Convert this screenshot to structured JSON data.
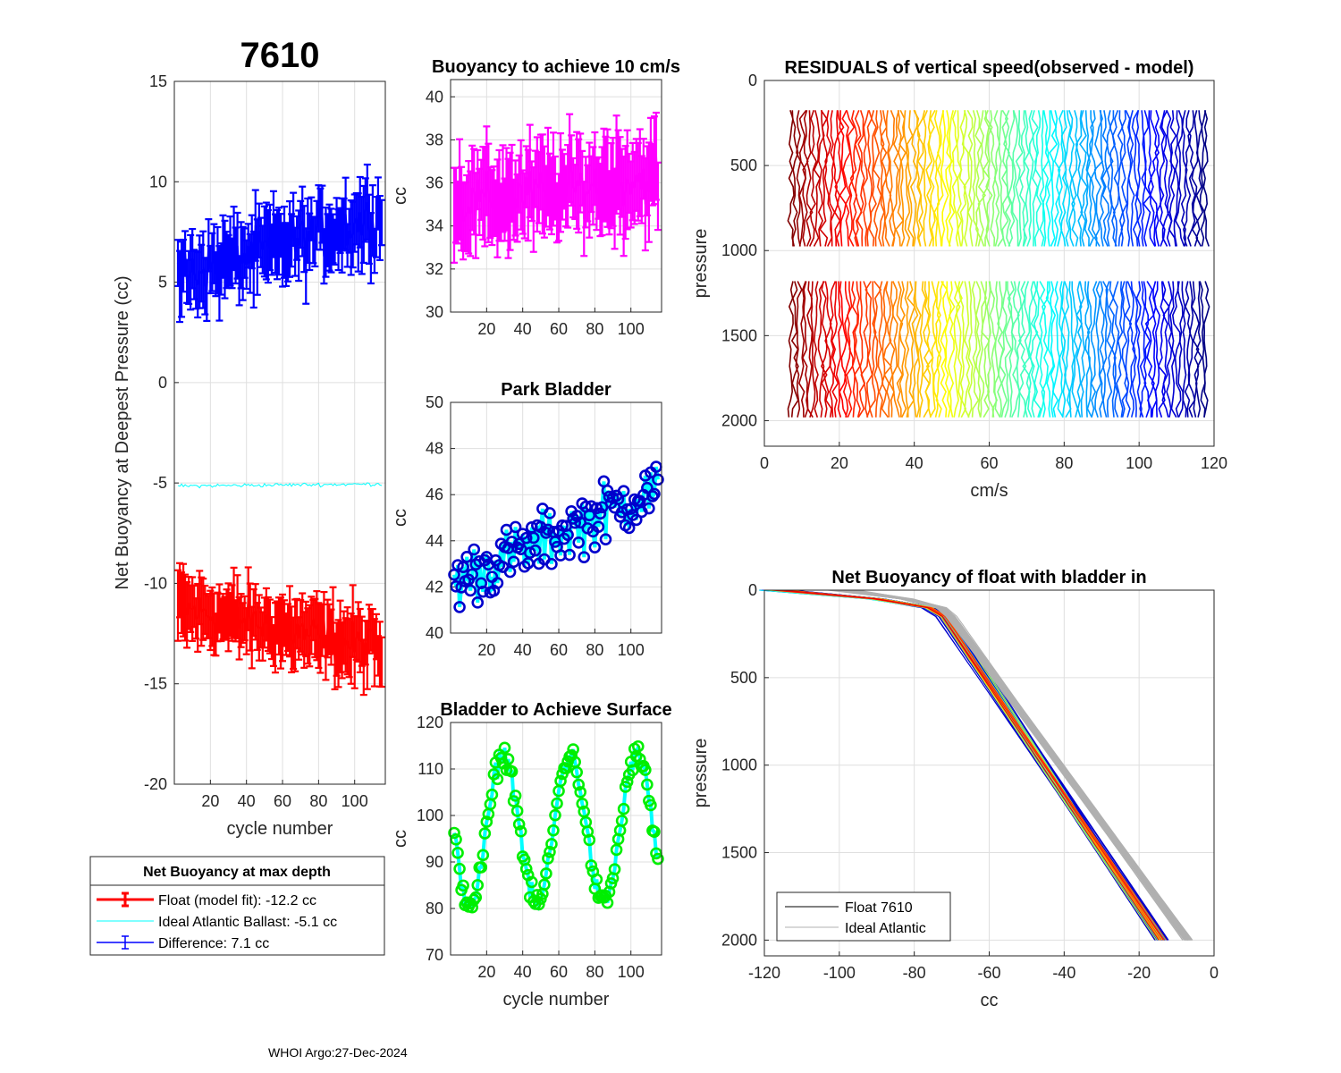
{
  "header": {
    "float_id": "7610",
    "footer": "WHOI Argo:27-Dec-2024"
  },
  "colors": {
    "red": "#ff0000",
    "blue": "#0000ff",
    "cyan": "#00ffff",
    "magenta": "#ff00ff",
    "green": "#00ee00",
    "navy": "#0000cc",
    "grey": "#b0b0b0",
    "black": "#000000"
  },
  "chart_data": [
    {
      "id": "net_buoyancy",
      "type": "line",
      "title": "7610",
      "xlabel": "cycle number",
      "ylabel": "Net Buoyancy at Deepest Pressure (cc)",
      "xlim": [
        0,
        117
      ],
      "ylim": [
        -20,
        15
      ],
      "xticks": [
        "20",
        "40",
        "60",
        "80",
        "100"
      ],
      "yticks": [
        "-20",
        "-15",
        "-10",
        "-5",
        "0",
        "5",
        "10",
        "15"
      ],
      "legend": {
        "title": "Net Buoyancy at max depth",
        "entries": [
          "Float (model fit): -12.2 cc",
          "Ideal Atlantic Ballast:  -5.1 cc",
          "Difference:   7.1 cc"
        ]
      },
      "series": [
        {
          "name": "Float (model fit)",
          "mean_start": -11.2,
          "mean_end": -13.3,
          "noise": 0.9,
          "errorbar": 1.4,
          "color": "#ff0000"
        },
        {
          "name": "Ideal Atlantic Ballast",
          "mean_start": -5.15,
          "mean_end": -5.05,
          "noise": 0.08,
          "color": "#00ffff"
        },
        {
          "name": "Difference",
          "mean_start": 5.3,
          "mean_end": 8.3,
          "noise": 1.0,
          "errorbar": 1.5,
          "color": "#0000ff"
        }
      ]
    },
    {
      "id": "buoyancy_10cms",
      "type": "line",
      "title": "Buoyancy to achieve 10 cm/s",
      "xlabel": "",
      "ylabel": "cc",
      "xlim": [
        0,
        117
      ],
      "ylim": [
        30,
        40.8
      ],
      "xticks": [
        "20",
        "40",
        "60",
        "80",
        "100"
      ],
      "yticks": [
        "30",
        "32",
        "34",
        "36",
        "38",
        "40"
      ],
      "series": [
        {
          "name": "Buoyancy",
          "mean_start": 35.0,
          "mean_end": 36.3,
          "noise": 1.0,
          "errorbar": 1.8,
          "color": "#ff00ff"
        }
      ]
    },
    {
      "id": "park_bladder",
      "type": "line",
      "title": "Park Bladder",
      "xlabel": "",
      "ylabel": "cc",
      "xlim": [
        0,
        117
      ],
      "ylim": [
        40,
        50
      ],
      "xticks": [
        "20",
        "40",
        "60",
        "80",
        "100"
      ],
      "yticks": [
        "40",
        "42",
        "44",
        "46",
        "48",
        "50"
      ],
      "series": [
        {
          "name": "Park Bladder",
          "mean_start": 42.2,
          "mean_end": 46.3,
          "noise": 1.1,
          "color": "#00ffff",
          "marker_color": "#0000cc"
        }
      ]
    },
    {
      "id": "bladder_surface",
      "type": "line",
      "title": "Bladder to Achieve Surface",
      "xlabel": "cycle number",
      "ylabel": "cc",
      "xlim": [
        0,
        117
      ],
      "ylim": [
        70,
        120
      ],
      "xticks": [
        "20",
        "40",
        "60",
        "80",
        "100"
      ],
      "yticks": [
        "70",
        "80",
        "90",
        "100",
        "110",
        "120"
      ],
      "series": [
        {
          "name": "Bladder to Surface",
          "mean": 97,
          "amplitude": 16,
          "period_cycles": 37,
          "noise": 2.0,
          "color": "#00ffff",
          "marker_color": "#00ee00"
        }
      ]
    },
    {
      "id": "residuals",
      "type": "line",
      "title": "RESIDUALS of vertical speed(observed - model)",
      "xlabel": "cm/s",
      "ylabel": "pressure",
      "xlim": [
        0,
        120
      ],
      "ylim": [
        0,
        2150
      ],
      "y_reversed": true,
      "xticks": [
        "0",
        "20",
        "40",
        "60",
        "80",
        "100",
        "120"
      ],
      "yticks": [
        "0",
        "500",
        "1000",
        "1500",
        "2000"
      ],
      "profile_count": 112,
      "offset_start": 7,
      "offset_step": 1,
      "segments": [
        {
          "p_start": 175,
          "p_end": 1000
        },
        {
          "p_start": 1180,
          "p_end": 2000
        }
      ]
    },
    {
      "id": "net_buoyancy_profile",
      "type": "line",
      "title": "Net Buoyancy of float with bladder in",
      "xlabel": "cc",
      "ylabel": "pressure",
      "xlim": [
        -120,
        0
      ],
      "ylim": [
        0,
        2090
      ],
      "y_reversed": true,
      "xticks": [
        "-120",
        "-100",
        "-80",
        "-60",
        "-40",
        "-20",
        "0"
      ],
      "yticks": [
        "0",
        "500",
        "1000",
        "1500",
        "2000"
      ],
      "legend": {
        "entries": [
          "Float 7610",
          "Ideal Atlantic"
        ]
      },
      "float_profile": {
        "surface_cc": -117,
        "knee_pressure": 150,
        "knee_cc": -72,
        "bottom_pressure": 2000,
        "bottom_cc": -14,
        "count": 112
      },
      "ideal_profile": {
        "surface_cc": -100,
        "knee_pressure": 150,
        "knee_cc": -70,
        "bottom_pressure": 2000,
        "bottom_cc": -7,
        "count": 60
      }
    }
  ]
}
